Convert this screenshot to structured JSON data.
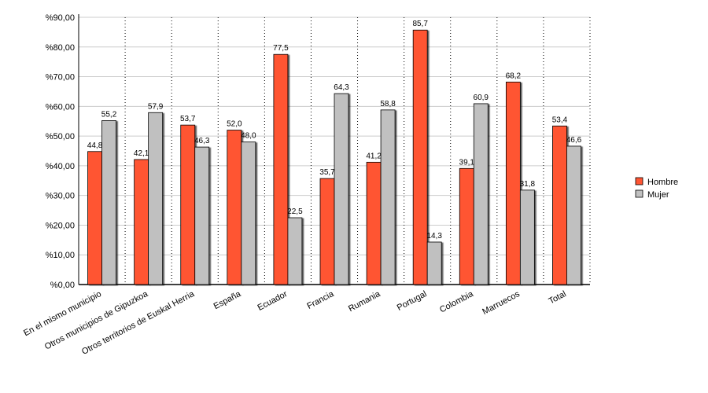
{
  "chart_data": {
    "type": "bar",
    "categories": [
      "En el mismo municipio",
      "Otros municipios de Gipuzkoa",
      "Otros territorios de Euskal Herria",
      "España",
      "Ecuador",
      "Francia",
      "Rumania",
      "Portugal",
      "Colombia",
      "Marruecos",
      "Total"
    ],
    "series": [
      {
        "name": "Hombre",
        "color": "#ff5533",
        "values": [
          44.8,
          42.1,
          53.7,
          52.0,
          77.5,
          35.7,
          41.2,
          85.7,
          39.1,
          68.2,
          53.4
        ],
        "value_labels": [
          "44,8",
          "42,1",
          "53,7",
          "52,0",
          "77,5",
          "35,7",
          "41,2",
          "85,7",
          "39,1",
          "68,2",
          "53,4"
        ]
      },
      {
        "name": "Mujer",
        "color": "#c0c0c0",
        "values": [
          55.2,
          57.9,
          46.3,
          48.0,
          22.5,
          64.3,
          58.8,
          14.3,
          60.9,
          31.8,
          46.6
        ],
        "value_labels": [
          "55,2",
          "57,9",
          "46,3",
          "48,0",
          "22,5",
          "64,3",
          "58,8",
          "14,3",
          "60,9",
          "31,8",
          "46,6"
        ]
      }
    ],
    "ylim": [
      0,
      90
    ],
    "yticks": [
      {
        "value": 0,
        "label": "%0,00"
      },
      {
        "value": 10,
        "label": "%10,00"
      },
      {
        "value": 20,
        "label": "%20,00"
      },
      {
        "value": 30,
        "label": "%30,00"
      },
      {
        "value": 40,
        "label": "%40,00"
      },
      {
        "value": 50,
        "label": "%50,00"
      },
      {
        "value": 60,
        "label": "%60,00"
      },
      {
        "value": 70,
        "label": "%70,00"
      },
      {
        "value": 80,
        "label": "%80,00"
      },
      {
        "value": 90,
        "label": "%90,00"
      }
    ],
    "grid": true,
    "legend": "right"
  }
}
